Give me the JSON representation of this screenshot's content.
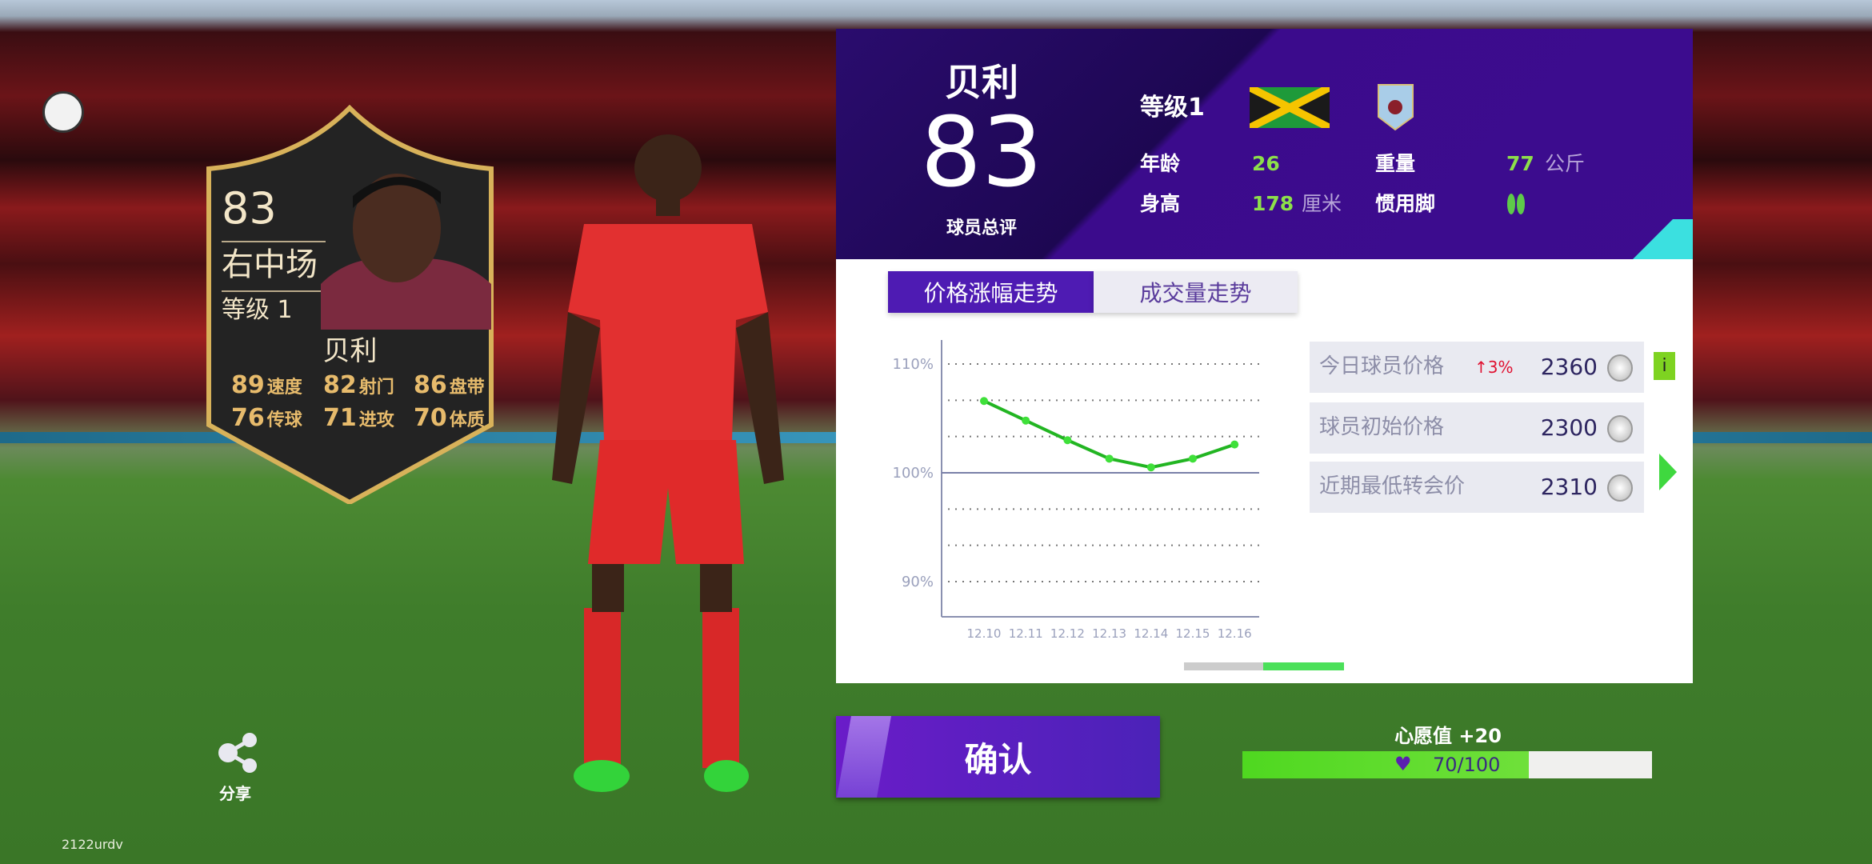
{
  "card": {
    "rating": "83",
    "position": "右中场",
    "level": "等级 1",
    "name": "贝利",
    "stats": [
      {
        "value": "89",
        "label": "速度"
      },
      {
        "value": "82",
        "label": "射门"
      },
      {
        "value": "86",
        "label": "盘带"
      },
      {
        "value": "76",
        "label": "传球"
      },
      {
        "value": "71",
        "label": "进攻"
      },
      {
        "value": "70",
        "label": "体质"
      }
    ]
  },
  "player_info": {
    "name": "贝利",
    "overall": "83",
    "overall_label": "球员总评",
    "level": "等级1",
    "age_label": "年龄",
    "age": "26",
    "weight_label": "重量",
    "weight": "77",
    "weight_unit": "公斤",
    "height_label": "身高",
    "height": "178",
    "height_unit": "厘米",
    "foot_label": "惯用脚",
    "nation_flag": "jamaica-flag",
    "club_crest": "club-crest-icon"
  },
  "tabs": [
    {
      "label": "价格涨幅走势",
      "active": true
    },
    {
      "label": "成交量走势",
      "active": false
    }
  ],
  "chart_data": {
    "type": "line",
    "x": [
      "12.10",
      "12.11",
      "12.12",
      "12.13",
      "12.14",
      "12.15",
      "12.16"
    ],
    "values": [
      106.6,
      104.8,
      103.0,
      101.3,
      100.5,
      101.3,
      102.6
    ],
    "yticks": [
      "110%",
      "100%",
      "90%"
    ],
    "ylim": [
      86,
      113
    ],
    "grid": "dotted horizontal",
    "color": "#22b522"
  },
  "prices": [
    {
      "label": "今日球员价格",
      "change": "3%",
      "change_dir": "up",
      "value": "2360"
    },
    {
      "label": "球员初始价格",
      "value": "2300"
    },
    {
      "label": "近期最低转会价",
      "value": "2310"
    }
  ],
  "info_tab": "i",
  "pager": {
    "pages": 2,
    "active": 2
  },
  "confirm_label": "确认",
  "wish": {
    "label": "心愿值 +20",
    "value_text": "70/100",
    "progress": 0.7
  },
  "share_label": "分享",
  "user_id": "2122urdv",
  "colors": {
    "accent": "#4e1bb3",
    "green": "#4cd82a",
    "red": "#e01030"
  }
}
